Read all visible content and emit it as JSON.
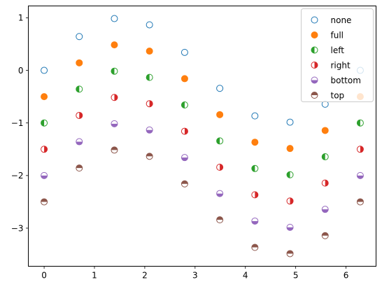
{
  "chart_data": {
    "type": "scatter",
    "title": "",
    "xlabel": "",
    "ylabel": "",
    "x": [
      0,
      0.698,
      1.396,
      2.094,
      2.793,
      3.491,
      4.189,
      4.887,
      5.585,
      6.283
    ],
    "xlim": [
      -0.314,
      6.597
    ],
    "ylim": [
      -3.725,
      1.225
    ],
    "xticks": [
      0,
      1,
      2,
      3,
      4,
      5,
      6
    ],
    "xtick_labels": [
      "0",
      "1",
      "2",
      "3",
      "4",
      "5",
      "6"
    ],
    "yticks": [
      1,
      0,
      -1,
      -2,
      -3
    ],
    "ytick_labels": [
      "1",
      "0",
      "−1",
      "−2",
      "−3"
    ],
    "grid": false,
    "legend_position": "top-right",
    "series": [
      {
        "name": "none",
        "fillstyle": "none",
        "color": "#1f77b4",
        "values": [
          0,
          0.643,
          0.985,
          0.866,
          0.342,
          -0.342,
          -0.866,
          -0.985,
          -0.643,
          0
        ]
      },
      {
        "name": "full",
        "fillstyle": "full",
        "color": "#ff7f0e",
        "values": [
          -0.5,
          0.143,
          0.485,
          0.366,
          -0.158,
          -0.842,
          -1.366,
          -1.485,
          -1.143,
          -0.5
        ]
      },
      {
        "name": "left",
        "fillstyle": "left",
        "color": "#2ca02c",
        "values": [
          -1.0,
          -0.357,
          -0.015,
          -0.134,
          -0.658,
          -1.342,
          -1.866,
          -1.985,
          -1.643,
          -1.0
        ]
      },
      {
        "name": "right",
        "fillstyle": "right",
        "color": "#d62728",
        "values": [
          -1.5,
          -0.857,
          -0.515,
          -0.634,
          -1.158,
          -1.842,
          -2.366,
          -2.485,
          -2.143,
          -1.5
        ]
      },
      {
        "name": "bottom",
        "fillstyle": "bottom",
        "color": "#9467bd",
        "values": [
          -2.0,
          -1.357,
          -1.015,
          -1.134,
          -1.658,
          -2.342,
          -2.866,
          -2.985,
          -2.643,
          -2.0
        ]
      },
      {
        "name": "top",
        "fillstyle": "top",
        "color": "#8c564b",
        "values": [
          -2.5,
          -1.857,
          -1.515,
          -1.634,
          -2.158,
          -2.842,
          -3.366,
          -3.485,
          -3.143,
          -2.5
        ]
      }
    ]
  }
}
